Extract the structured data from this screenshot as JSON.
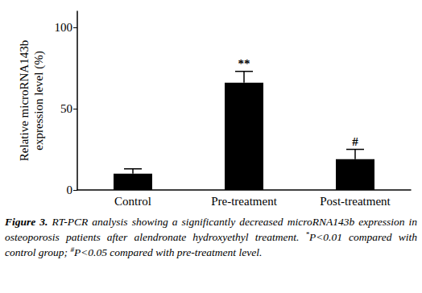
{
  "chart_data": {
    "type": "bar",
    "y_label": "Relative microRNA143b expression level (%)",
    "categories": [
      "Control",
      "Pre-treatment",
      "Post-treatment"
    ],
    "values": [
      10,
      66,
      19
    ],
    "errors": [
      3,
      7,
      6
    ],
    "color": "#000000",
    "ylim": [
      0,
      110
    ],
    "yticks": [
      0,
      50,
      100
    ],
    "grid": false,
    "annotations": [
      {
        "category": "Pre-treatment",
        "text": "**"
      },
      {
        "category": "Post-treatment",
        "text": "#"
      }
    ],
    "caption_label": "Figure 3.",
    "caption": "RT-PCR analysis showing a significantly decreased microRNA143b expression in osteoporosis patients after alendronate hydroxyethyl treatment. *P<0.01 compared with control group; #P<0.05 compared with pre-treatment level."
  }
}
